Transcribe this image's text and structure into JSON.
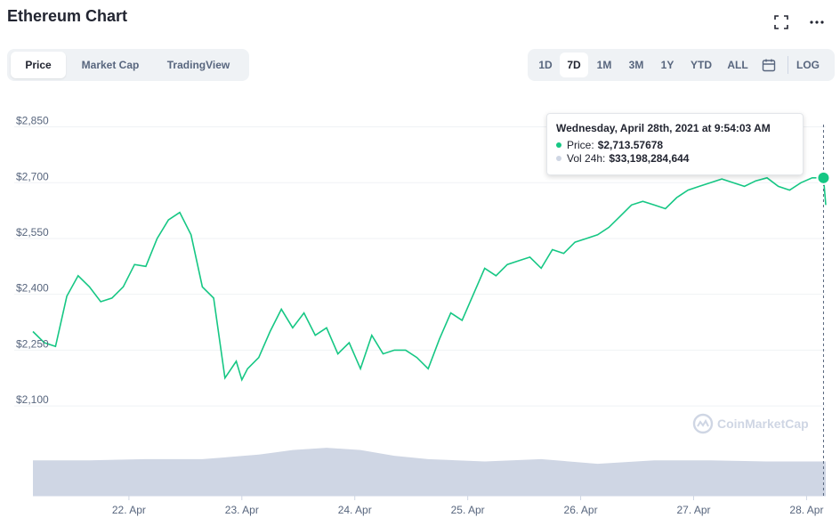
{
  "header": {
    "title": "Ethereum Chart"
  },
  "icons": {
    "fullscreen": "fullscreen-icon",
    "more": "more-icon",
    "calendar": "calendar-icon"
  },
  "tabs": [
    {
      "label": "Price",
      "active": true
    },
    {
      "label": "Market Cap",
      "active": false
    },
    {
      "label": "TradingView",
      "active": false
    }
  ],
  "ranges": [
    {
      "label": "1D",
      "active": false
    },
    {
      "label": "7D",
      "active": true
    },
    {
      "label": "1M",
      "active": false
    },
    {
      "label": "3M",
      "active": false
    },
    {
      "label": "1Y",
      "active": false
    },
    {
      "label": "YTD",
      "active": false
    },
    {
      "label": "ALL",
      "active": false
    }
  ],
  "log_label": "LOG",
  "tooltip": {
    "date": "Wednesday, April 28th, 2021 at 9:54:03 AM",
    "price_label": "Price:",
    "price_value": "$2,713.57678",
    "vol_label": "Vol 24h:",
    "vol_value": "$33,198,284,644"
  },
  "watermark": "CoinMarketCap",
  "colors": {
    "price_line": "#16c784",
    "volume": "#cfd6e4",
    "grid": "#eff2f5",
    "axis_text": "#58667e"
  },
  "chart_data": {
    "type": "line",
    "series": [
      {
        "name": "Price",
        "x": [
          0,
          0.1,
          0.2,
          0.3,
          0.4,
          0.5,
          0.6,
          0.7,
          0.8,
          0.9,
          1.0,
          1.1,
          1.2,
          1.3,
          1.4,
          1.5,
          1.6,
          1.7,
          1.8,
          1.85,
          1.9,
          2.0,
          2.1,
          2.2,
          2.3,
          2.4,
          2.5,
          2.6,
          2.7,
          2.8,
          2.9,
          3.0,
          3.1,
          3.2,
          3.3,
          3.4,
          3.5,
          3.6,
          3.7,
          3.8,
          3.9,
          4.0,
          4.1,
          4.2,
          4.3,
          4.4,
          4.5,
          4.6,
          4.7,
          4.8,
          4.9,
          5.0,
          5.1,
          5.2,
          5.3,
          5.4,
          5.5,
          5.6,
          5.7,
          5.8,
          5.9,
          6.0,
          6.1,
          6.2,
          6.3,
          6.4,
          6.5,
          6.6,
          6.7,
          6.8,
          6.9,
          7.0,
          7.02
        ],
        "values": [
          2300,
          2270,
          2260,
          2395,
          2450,
          2420,
          2380,
          2390,
          2420,
          2480,
          2475,
          2550,
          2600,
          2620,
          2560,
          2420,
          2390,
          2175,
          2220,
          2170,
          2200,
          2230,
          2300,
          2360,
          2310,
          2350,
          2290,
          2310,
          2240,
          2270,
          2200,
          2290,
          2240,
          2250,
          2250,
          2230,
          2200,
          2280,
          2350,
          2330,
          2400,
          2470,
          2450,
          2480,
          2490,
          2500,
          2470,
          2520,
          2510,
          2540,
          2550,
          2560,
          2580,
          2610,
          2640,
          2650,
          2640,
          2630,
          2660,
          2680,
          2690,
          2700,
          2710,
          2700,
          2690,
          2705,
          2713,
          2690,
          2680,
          2700,
          2713,
          2713,
          2640
        ]
      },
      {
        "name": "Vol 24h",
        "x": [
          0,
          0.5,
          1.0,
          1.5,
          2.0,
          2.3,
          2.6,
          2.9,
          3.2,
          3.5,
          4.0,
          4.5,
          5.0,
          5.5,
          6.0,
          6.5,
          7.02
        ],
        "values": [
          31,
          31,
          32,
          32,
          36,
          40,
          42,
          40,
          35,
          32,
          30,
          32,
          28,
          31,
          31,
          30,
          30
        ]
      }
    ],
    "x_ticks": [
      "22. Apr",
      "23. Apr",
      "24. Apr",
      "25. Apr",
      "26. Apr",
      "27. Apr",
      "28. Apr"
    ],
    "x_tick_positions": [
      0.85,
      1.85,
      2.85,
      3.85,
      4.85,
      5.85,
      6.85
    ],
    "y_ticks": [
      "$2,850",
      "$2,700",
      "$2,550",
      "$2,400",
      "$2,250",
      "$2,100"
    ],
    "y_tick_values": [
      2850,
      2700,
      2550,
      2400,
      2250,
      2100
    ],
    "ylim": [
      2050,
      2880
    ],
    "xlim": [
      0,
      7.02
    ],
    "grid": true
  }
}
